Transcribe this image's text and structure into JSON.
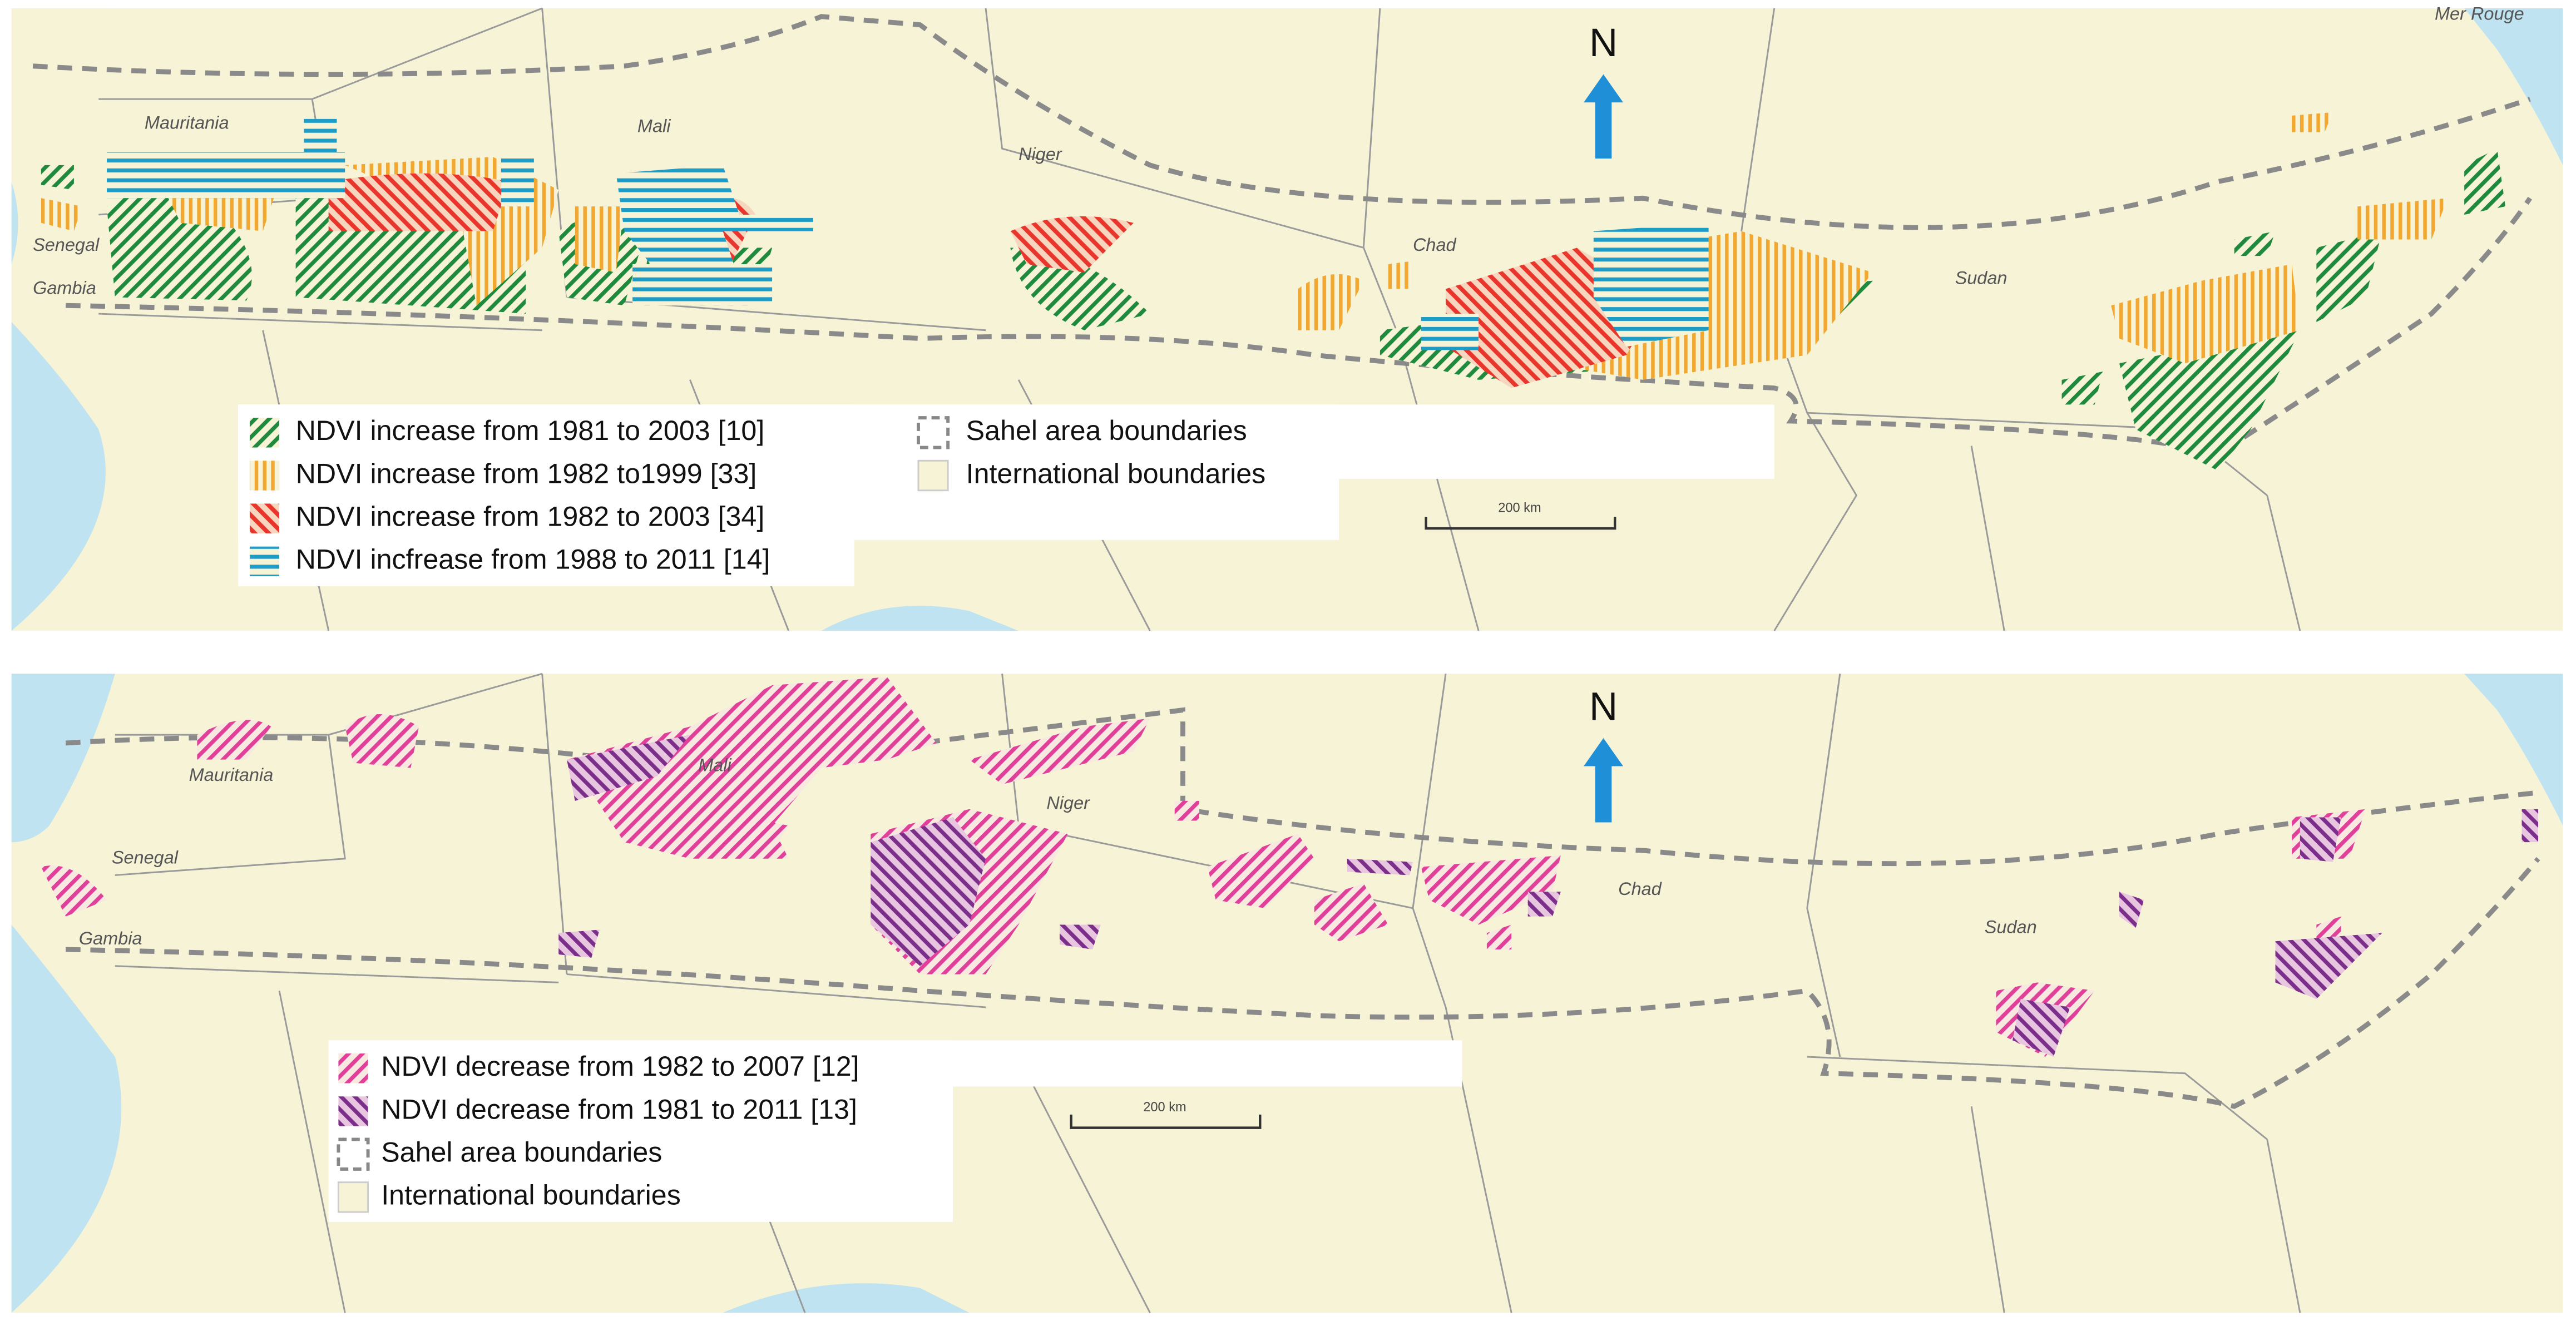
{
  "panels": [
    {
      "north": "N",
      "scale": "200 km",
      "places": [
        "Mauritania",
        "Mali",
        "Niger",
        "Chad",
        "Sudan",
        "Senegal",
        "Gambia",
        "Mer Rouge"
      ],
      "legend": [
        "NDVI increase from 1981 to 2003 [10]",
        "NDVI increase from 1982 to1999 [33]",
        "NDVI increase from 1982 to 2003 [34]",
        "NDVI incfrease from 1988 to 2011 [14]",
        "Sahel area boundaries",
        "International boundaries"
      ]
    },
    {
      "north": "N",
      "scale": "200 km",
      "places": [
        "Mauritania",
        "Mali",
        "Niger",
        "Chad",
        "Sudan",
        "Senegal",
        "Gambia"
      ],
      "legend": [
        "NDVI decrease from 1982 to 2007 [12]",
        "NDVI decrease from 1981 to 2011 [13]",
        "Sahel area boundaries",
        "International boundaries"
      ]
    }
  ]
}
